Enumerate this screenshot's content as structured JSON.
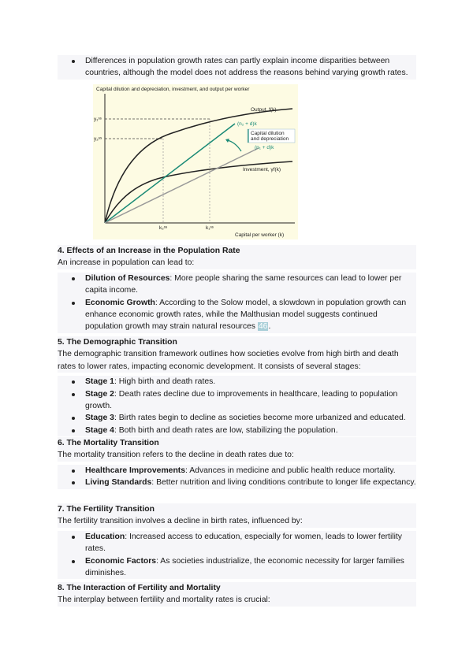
{
  "intro_bullet": "Differences in population growth rates can partly explain income disparities between countries, although the model does not address the reasons behind varying growth rates.",
  "figure": {
    "title": "Capital dilution and depreciation, investment, and output per worker",
    "xlabel": "Capital per worker (k)",
    "output_label": "Output, f(k)",
    "investment_label": "Investment, γf(k)",
    "line2_label": "(n₂ + d)k",
    "line1_label": "(n₁ + d)k",
    "box_label_1": "Capital dilution",
    "box_label_2": "and depreciation",
    "y1_label": "y₁ˢˢ",
    "y2_label": "y₂ˢˢ",
    "k1_label": "k₁ˢˢ",
    "k2_label": "k₂ˢˢ",
    "colors": {
      "background": "#fdfbe3",
      "accent": "#1a8a76",
      "gray_line": "#999999"
    }
  },
  "sections": [
    {
      "heading": "4. Effects of an Increase in the Population Rate",
      "intro": "An increase in population can lead to:",
      "items": [
        {
          "term": "Dilution of Resources",
          "text": ": More people sharing the same resources can lead to lower per capita income."
        },
        {
          "term": "Economic Growth",
          "text": ": According to the Solow model, a slowdown in population growth can enhance economic growth rates, while the Malthusian model suggests continued population growth may strain natural resources ",
          "cite": "46",
          "tail": "."
        }
      ]
    },
    {
      "heading": "5. The Demographic Transition",
      "intro": "The demographic transition framework outlines how societies evolve from high birth and death rates to lower rates, impacting economic development. It consists of several stages:",
      "items": [
        {
          "term": "Stage 1",
          "text": ": High birth and death rates."
        },
        {
          "term": "Stage 2",
          "text": ": Death rates decline due to improvements in healthcare, leading to population growth."
        },
        {
          "term": "Stage 3",
          "text": ": Birth rates begin to decline as societies become more urbanized and educated."
        },
        {
          "term": "Stage 4",
          "text": ": Both birth and death rates are low, stabilizing the population."
        }
      ]
    },
    {
      "heading": "6. The Mortality Transition",
      "intro": "The mortality transition refers to the decline in death rates due to:",
      "items": [
        {
          "term": "Healthcare Improvements",
          "text": ": Advances in medicine and public health reduce mortality."
        },
        {
          "term": "Living Standards",
          "text": ": Better nutrition and living conditions contribute to longer life expectancy."
        }
      ]
    },
    {
      "heading": "7. The Fertility Transition",
      "intro": "The fertility transition involves a decline in birth rates, influenced by:",
      "items": [
        {
          "term": "Education",
          "text": ": Increased access to education, especially for women, leads to lower fertility rates."
        },
        {
          "term": "Economic Factors",
          "text": ": As societies industrialize, the economic necessity for larger families diminishes."
        }
      ]
    },
    {
      "heading": "8. The Interaction of Fertility and Mortality",
      "intro": "The interplay between fertility and mortality rates is crucial:",
      "items": []
    }
  ]
}
